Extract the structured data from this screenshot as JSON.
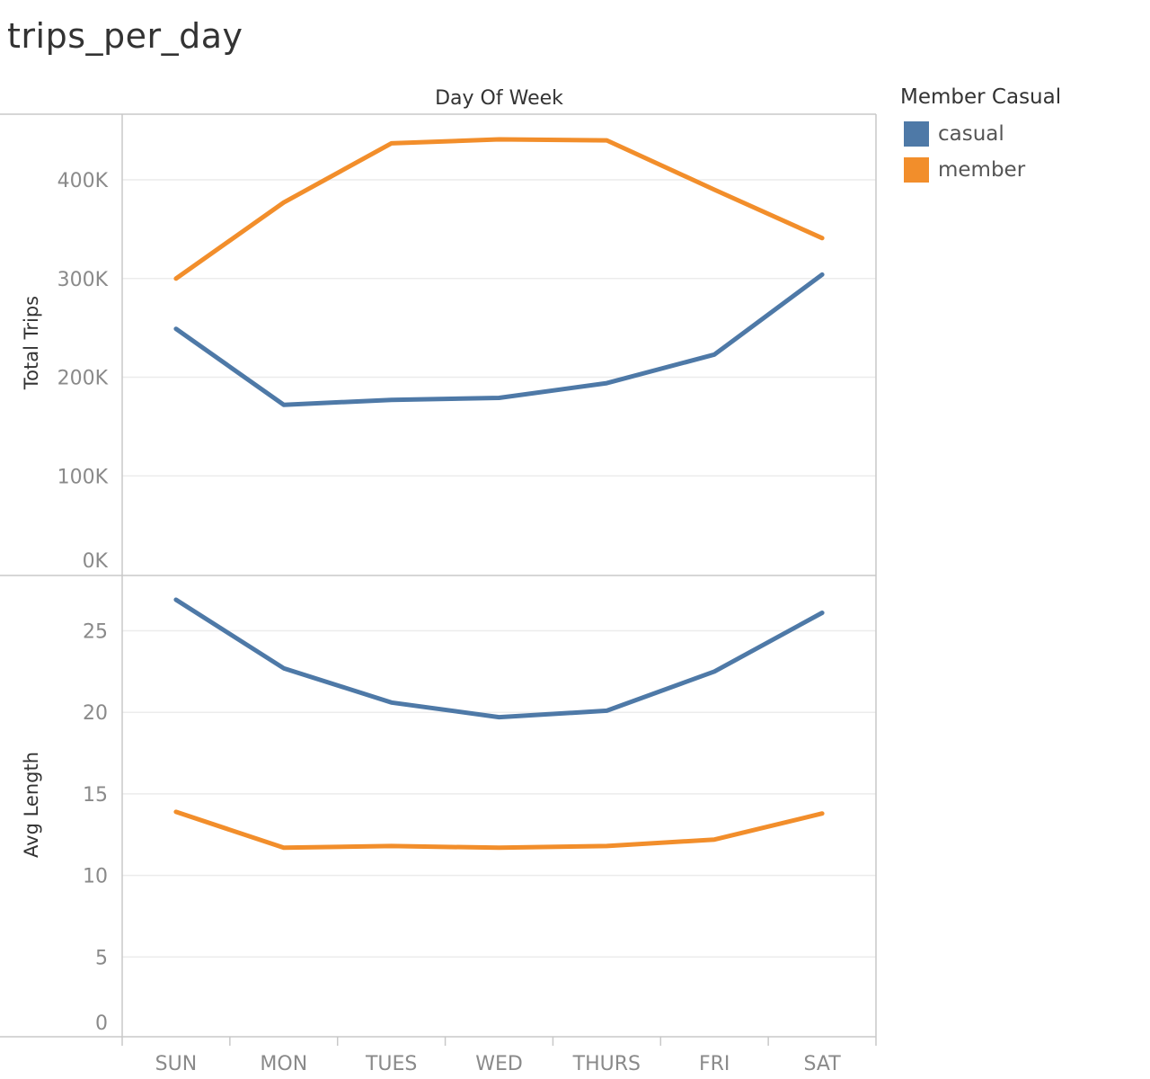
{
  "title": "trips_per_day",
  "colors": {
    "casual": "#4e79a7",
    "member": "#f28e2b",
    "grid": "#ececec",
    "axis": "#c8c8c8",
    "tick_text": "#8a8a8a",
    "label_text": "#333333"
  },
  "legend": {
    "title": "Member Casual",
    "items": [
      {
        "label": "casual",
        "color": "#4e79a7"
      },
      {
        "label": "member",
        "color": "#f28e2b"
      }
    ]
  },
  "chart_data": [
    {
      "type": "line",
      "column_header": "Day Of Week",
      "ylabel": "Total Trips",
      "categories": [
        "SUN",
        "MON",
        "TUES",
        "WED",
        "THURS",
        "FRI",
        "SAT"
      ],
      "ylim": [
        0,
        470000
      ],
      "yticks": [
        {
          "value": 0,
          "label": "0K"
        },
        {
          "value": 100000,
          "label": "100K"
        },
        {
          "value": 200000,
          "label": "200K"
        },
        {
          "value": 300000,
          "label": "300K"
        },
        {
          "value": 400000,
          "label": "400K"
        }
      ],
      "grid": true,
      "series": [
        {
          "name": "casual",
          "color": "#4e79a7",
          "values": [
            249000,
            172000,
            177000,
            179000,
            194000,
            223000,
            304000
          ]
        },
        {
          "name": "member",
          "color": "#f28e2b",
          "values": [
            300000,
            377000,
            437000,
            441000,
            440000,
            390000,
            341000
          ]
        }
      ]
    },
    {
      "type": "line",
      "ylabel": "Avg Length",
      "categories": [
        "SUN",
        "MON",
        "TUES",
        "WED",
        "THURS",
        "FRI",
        "SAT"
      ],
      "ylim": [
        0,
        28.5
      ],
      "yticks": [
        {
          "value": 0,
          "label": "0"
        },
        {
          "value": 5,
          "label": "5"
        },
        {
          "value": 10,
          "label": "10"
        },
        {
          "value": 15,
          "label": "15"
        },
        {
          "value": 20,
          "label": "20"
        },
        {
          "value": 25,
          "label": "25"
        }
      ],
      "grid": true,
      "series": [
        {
          "name": "casual",
          "color": "#4e79a7",
          "values": [
            26.9,
            22.7,
            20.6,
            19.7,
            20.1,
            22.5,
            26.1
          ]
        },
        {
          "name": "member",
          "color": "#f28e2b",
          "values": [
            13.9,
            11.7,
            11.8,
            11.7,
            11.8,
            12.2,
            13.8
          ]
        }
      ]
    }
  ]
}
